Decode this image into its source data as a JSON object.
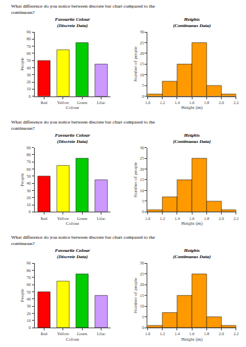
{
  "chart_data": [
    {
      "type": "bar",
      "title": "Favourite Colour\n(Discrete Data)",
      "annotations": [
        "What difference do you notice between discrete bar chart compared to the\ncontinuous?"
      ],
      "categories": [
        "Red",
        "Yellow",
        "Green",
        "Lilac"
      ],
      "values": [
        50,
        65,
        75,
        45
      ],
      "colors": [
        "#ff0000",
        "#ffff00",
        "#00cc00",
        "#cc99ff"
      ],
      "xlabel": "Colour",
      "ylabel": "People",
      "ylim": [
        0,
        90
      ],
      "yticks": [
        0,
        10,
        20,
        30,
        40,
        50,
        60,
        70,
        80,
        90
      ],
      "grid": false
    },
    {
      "type": "histogram",
      "title": "Heights\n(Continuous Data)",
      "bins": [
        1.0,
        1.2,
        1.4,
        1.6,
        1.8,
        2.0,
        2.2
      ],
      "values": [
        1,
        7,
        15,
        25,
        5,
        1
      ],
      "color": "#ff9900",
      "xlabel": "Height (m)",
      "ylabel": "Number of people",
      "xlim": [
        1.0,
        2.2
      ],
      "xticks": [
        {
          "value": 1.0,
          "label": "1.0"
        },
        1.2,
        1.4,
        1.6,
        1.8,
        {
          "value": 2.0,
          "label": "2.0"
        },
        2.2
      ],
      "ylim": [
        0,
        30
      ],
      "yticks": [
        0,
        5,
        10,
        15,
        20,
        25,
        30
      ],
      "grid": false
    },
    {
      "type": "bar",
      "title": "Favourite Colour\n(Discrete Data)",
      "annotations": [
        "What difference do you notice between discrete bar chart compared to the\ncontinuous?"
      ],
      "categories": [
        "Red",
        "Yellow",
        "Green",
        "Lilac"
      ],
      "values": [
        50,
        65,
        75,
        45
      ],
      "colors": [
        "#ff0000",
        "#ffff00",
        "#00cc00",
        "#cc99ff"
      ],
      "xlabel": "Colour",
      "ylabel": "People",
      "ylim": [
        0,
        90
      ],
      "yticks": [
        0,
        10,
        20,
        30,
        40,
        50,
        60,
        70,
        80,
        90
      ],
      "grid": false
    },
    {
      "type": "histogram",
      "title": "Heights\n(Continuous Data)",
      "bins": [
        1.0,
        1.2,
        1.4,
        1.6,
        1.8,
        2.0,
        2.2
      ],
      "values": [
        1,
        7,
        15,
        25,
        5,
        1
      ],
      "color": "#ff9900",
      "xlabel": "Height (m)",
      "ylabel": "Number of people",
      "xlim": [
        1.0,
        2.2
      ],
      "xticks": [
        {
          "value": 1.0,
          "label": "1.0"
        },
        1.2,
        1.4,
        1.6,
        1.8,
        {
          "value": 2.0,
          "label": "2.0"
        },
        2.2
      ],
      "ylim": [
        0,
        30
      ],
      "yticks": [
        0,
        5,
        10,
        15,
        20,
        25,
        30
      ],
      "grid": false
    },
    {
      "type": "bar",
      "title": "Favourite Colour\n(Discrete Data)",
      "annotations": [
        "What difference do you notice between discrete bar chart compared to the\ncontinuous?"
      ],
      "categories": [
        "Red",
        "Yellow",
        "Green",
        "Lilac"
      ],
      "values": [
        50,
        65,
        75,
        45
      ],
      "colors": [
        "#ff0000",
        "#ffff00",
        "#00cc00",
        "#cc99ff"
      ],
      "xlabel": "Colour",
      "ylabel": "People",
      "ylim": [
        0,
        90
      ],
      "yticks": [
        0,
        10,
        20,
        30,
        40,
        50,
        60,
        70,
        80,
        90
      ],
      "grid": false
    },
    {
      "type": "histogram",
      "title": "Heights\n(Continuous Data)",
      "bins": [
        1.0,
        1.2,
        1.4,
        1.6,
        1.8,
        2.0,
        2.2
      ],
      "values": [
        1,
        7,
        15,
        25,
        5,
        1
      ],
      "color": "#ff9900",
      "xlabel": "Height (m)",
      "ylabel": "Number of people",
      "xlim": [
        1.0,
        2.2
      ],
      "xticks": [
        {
          "value": 1.0,
          "label": "1.0"
        },
        1.2,
        1.4,
        1.6,
        1.8,
        {
          "value": 2.0,
          "label": "2.0"
        },
        2.2
      ],
      "ylim": [
        0,
        30
      ],
      "yticks": [
        0,
        5,
        10,
        15,
        20,
        25,
        30
      ],
      "grid": false
    }
  ]
}
